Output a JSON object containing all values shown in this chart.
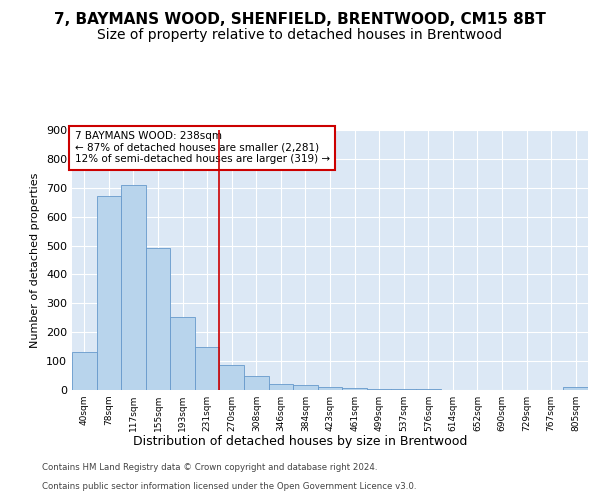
{
  "title1": "7, BAYMANS WOOD, SHENFIELD, BRENTWOOD, CM15 8BT",
  "title2": "Size of property relative to detached houses in Brentwood",
  "xlabel": "Distribution of detached houses by size in Brentwood",
  "ylabel": "Number of detached properties",
  "footer1": "Contains HM Land Registry data © Crown copyright and database right 2024.",
  "footer2": "Contains public sector information licensed under the Open Government Licence v3.0.",
  "bin_labels": [
    "40sqm",
    "78sqm",
    "117sqm",
    "155sqm",
    "193sqm",
    "231sqm",
    "270sqm",
    "308sqm",
    "346sqm",
    "384sqm",
    "423sqm",
    "461sqm",
    "499sqm",
    "537sqm",
    "576sqm",
    "614sqm",
    "652sqm",
    "690sqm",
    "729sqm",
    "767sqm",
    "805sqm"
  ],
  "bar_values": [
    133,
    672,
    710,
    493,
    252,
    150,
    85,
    48,
    22,
    17,
    11,
    8,
    5,
    2,
    2,
    1,
    1,
    1,
    0,
    0,
    10
  ],
  "bar_color": "#b8d4ec",
  "bar_edge_color": "#6699cc",
  "vline_x": 5.5,
  "vline_color": "#cc0000",
  "annotation_text": "7 BAYMANS WOOD: 238sqm\n← 87% of detached houses are smaller (2,281)\n12% of semi-detached houses are larger (319) →",
  "annotation_box_color": "white",
  "annotation_box_edge": "#cc0000",
  "ylim": [
    0,
    900
  ],
  "yticks": [
    0,
    100,
    200,
    300,
    400,
    500,
    600,
    700,
    800,
    900
  ],
  "plot_bg_color": "#dce8f5",
  "grid_color": "white",
  "title_fontsize": 11,
  "subtitle_fontsize": 10
}
